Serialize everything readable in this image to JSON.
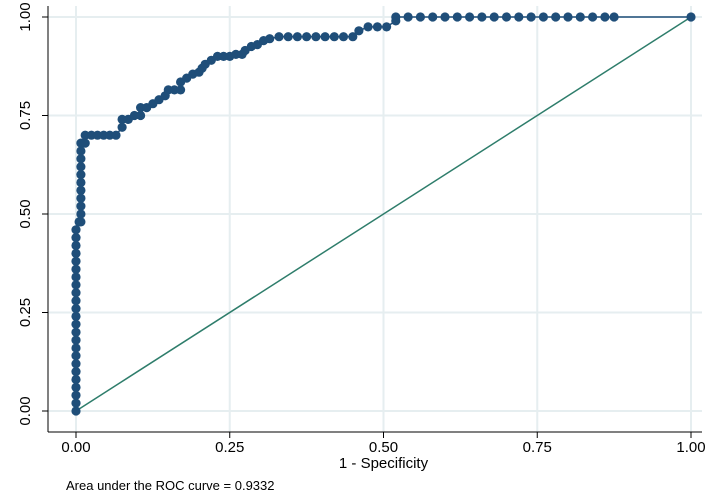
{
  "chart_data": {
    "type": "scatter",
    "title": "",
    "xlabel": "1 - Specificity",
    "ylabel": "",
    "xlim": [
      0,
      1
    ],
    "ylim": [
      0,
      1
    ],
    "x_ticks": [
      "0.00",
      "0.25",
      "0.50",
      "0.75",
      "1.00"
    ],
    "y_ticks": [
      "0.00",
      "0.25",
      "0.50",
      "0.75",
      "1.00"
    ],
    "grid": true,
    "note": "Area under the ROC curve = 0.9332",
    "colors": {
      "curve": "#1f4e79",
      "reference": "#2e7d6b",
      "grid": "#e6eef0",
      "axis": "#000000"
    },
    "series": [
      {
        "type": "line-with-markers",
        "points": [
          [
            0.0,
            0.0
          ],
          [
            0.0,
            0.02
          ],
          [
            0.0,
            0.04
          ],
          [
            0.0,
            0.06
          ],
          [
            0.0,
            0.08
          ],
          [
            0.0,
            0.1
          ],
          [
            0.0,
            0.12
          ],
          [
            0.0,
            0.14
          ],
          [
            0.0,
            0.16
          ],
          [
            0.0,
            0.18
          ],
          [
            0.0,
            0.2
          ],
          [
            0.0,
            0.22
          ],
          [
            0.0,
            0.24
          ],
          [
            0.0,
            0.26
          ],
          [
            0.0,
            0.28
          ],
          [
            0.0,
            0.3
          ],
          [
            0.0,
            0.32
          ],
          [
            0.0,
            0.34
          ],
          [
            0.0,
            0.36
          ],
          [
            0.0,
            0.38
          ],
          [
            0.0,
            0.4
          ],
          [
            0.0,
            0.42
          ],
          [
            0.0,
            0.44
          ],
          [
            0.0,
            0.46
          ],
          [
            0.005,
            0.48
          ],
          [
            0.008,
            0.48
          ],
          [
            0.008,
            0.5
          ],
          [
            0.008,
            0.52
          ],
          [
            0.008,
            0.54
          ],
          [
            0.008,
            0.56
          ],
          [
            0.008,
            0.58
          ],
          [
            0.008,
            0.6
          ],
          [
            0.008,
            0.62
          ],
          [
            0.008,
            0.64
          ],
          [
            0.008,
            0.66
          ],
          [
            0.008,
            0.68
          ],
          [
            0.015,
            0.68
          ],
          [
            0.015,
            0.7
          ],
          [
            0.025,
            0.7
          ],
          [
            0.035,
            0.7
          ],
          [
            0.045,
            0.7
          ],
          [
            0.055,
            0.7
          ],
          [
            0.065,
            0.7
          ],
          [
            0.075,
            0.72
          ],
          [
            0.075,
            0.74
          ],
          [
            0.085,
            0.74
          ],
          [
            0.095,
            0.75
          ],
          [
            0.105,
            0.75
          ],
          [
            0.105,
            0.77
          ],
          [
            0.115,
            0.77
          ],
          [
            0.125,
            0.78
          ],
          [
            0.135,
            0.79
          ],
          [
            0.145,
            0.8
          ],
          [
            0.15,
            0.815
          ],
          [
            0.16,
            0.815
          ],
          [
            0.17,
            0.815
          ],
          [
            0.17,
            0.835
          ],
          [
            0.18,
            0.845
          ],
          [
            0.19,
            0.855
          ],
          [
            0.2,
            0.86
          ],
          [
            0.205,
            0.87
          ],
          [
            0.21,
            0.88
          ],
          [
            0.22,
            0.89
          ],
          [
            0.23,
            0.9
          ],
          [
            0.24,
            0.9
          ],
          [
            0.25,
            0.9
          ],
          [
            0.26,
            0.905
          ],
          [
            0.27,
            0.905
          ],
          [
            0.275,
            0.915
          ],
          [
            0.285,
            0.925
          ],
          [
            0.295,
            0.93
          ],
          [
            0.305,
            0.94
          ],
          [
            0.315,
            0.945
          ],
          [
            0.33,
            0.95
          ],
          [
            0.345,
            0.95
          ],
          [
            0.36,
            0.95
          ],
          [
            0.375,
            0.95
          ],
          [
            0.39,
            0.95
          ],
          [
            0.405,
            0.95
          ],
          [
            0.42,
            0.95
          ],
          [
            0.435,
            0.95
          ],
          [
            0.45,
            0.95
          ],
          [
            0.46,
            0.965
          ],
          [
            0.475,
            0.975
          ],
          [
            0.49,
            0.975
          ],
          [
            0.505,
            0.975
          ],
          [
            0.52,
            0.99
          ],
          [
            0.52,
            1.0
          ],
          [
            0.54,
            1.0
          ],
          [
            0.56,
            1.0
          ],
          [
            0.58,
            1.0
          ],
          [
            0.6,
            1.0
          ],
          [
            0.62,
            1.0
          ],
          [
            0.64,
            1.0
          ],
          [
            0.66,
            1.0
          ],
          [
            0.68,
            1.0
          ],
          [
            0.7,
            1.0
          ],
          [
            0.72,
            1.0
          ],
          [
            0.74,
            1.0
          ],
          [
            0.76,
            1.0
          ],
          [
            0.78,
            1.0
          ],
          [
            0.8,
            1.0
          ],
          [
            0.82,
            1.0
          ],
          [
            0.84,
            1.0
          ],
          [
            0.86,
            1.0
          ],
          [
            0.875,
            1.0
          ],
          [
            1.0,
            1.0
          ]
        ]
      },
      {
        "type": "reference-line",
        "points": [
          [
            0,
            0
          ],
          [
            1,
            1
          ]
        ]
      }
    ]
  }
}
